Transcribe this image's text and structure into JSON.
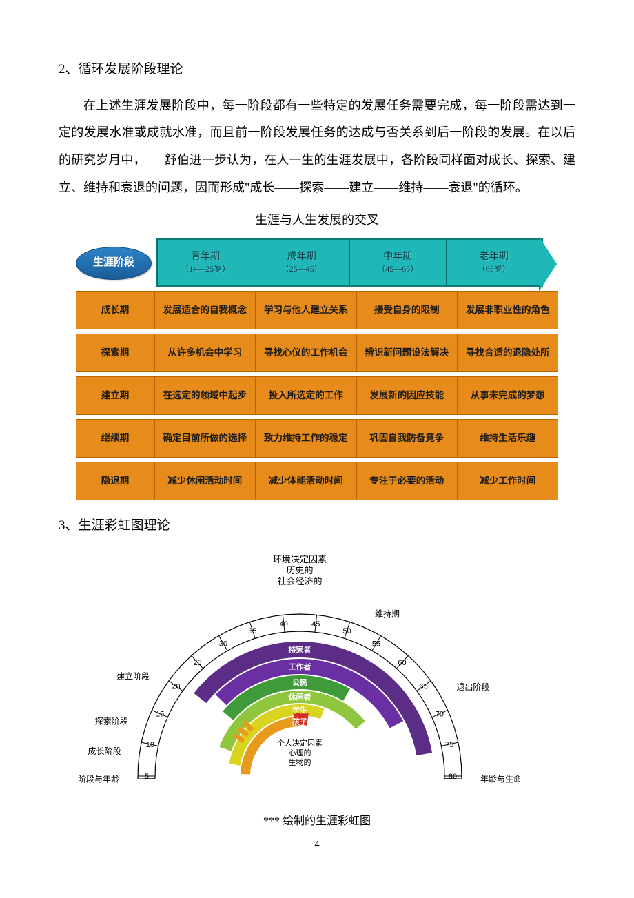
{
  "section2": {
    "heading": "2、循环发展阶段理论",
    "paragraph": "在上述生涯发展阶段中，每一阶段都有一些特定的发展任务需要完成，每一阶段需达到一定的发展水准或成就水准，而且前一阶段发展任务的达成与否关系到后一阶段的发展。在以后的研究岁月中，　　舒伯进一步认为，在人一生的生涯发展中，各阶段同样面对成长、探索、建立、维持和衰退的问题，因而形成\"成长——探索——建立——维持——衰退\"的循环。",
    "chart_title": "生涯与人生发展的交叉"
  },
  "matrix": {
    "stage_badge": "生涯阶段",
    "stage_badge_bg": "#2d84c7",
    "arrow_bg": "#20b7b7",
    "cell_bg": "#e78b1a",
    "columns": [
      {
        "label": "青年期",
        "age": "（14—25岁）"
      },
      {
        "label": "成年期",
        "age": "（25—45）"
      },
      {
        "label": "中年期",
        "age": "（45—65）"
      },
      {
        "label": "老年期",
        "age": "（65岁）"
      }
    ],
    "rows": [
      {
        "hdr": "成长期",
        "cells": [
          "发展适合的自我概念",
          "学习与他人建立关系",
          "接受自身的限制",
          "发展非职业性的角色"
        ]
      },
      {
        "hdr": "探索期",
        "cells": [
          "从许多机会中学习",
          "寻找心仪的工作机会",
          "辨识新问题设法解决",
          "寻找合适的退隐处所"
        ]
      },
      {
        "hdr": "建立期",
        "cells": [
          "在选定的领域中起步",
          "投入所选定的工作",
          "发展新的因应技能",
          "从事未完成的梦想"
        ]
      },
      {
        "hdr": "继续期",
        "cells": [
          "确定目前所做的选择",
          "致力维持工作的稳定",
          "巩固自我防备竞争",
          "维持生活乐趣"
        ]
      },
      {
        "hdr": "隐退期",
        "cells": [
          "减少休闲活动时间",
          "减少体能活动时间",
          "专注于必要的活动",
          "减少工作时间"
        ]
      }
    ]
  },
  "section3": {
    "heading": "3、生涯彩虹图理论",
    "caption": "*** 绘制的生涯彩虹图",
    "page_number": "4"
  },
  "rainbow": {
    "top_labels": [
      "环境决定因素",
      "历史的",
      "社会经济的"
    ],
    "bottom_labels": [
      "个人决定因素",
      "心理的",
      "生物的"
    ],
    "outer_ticks": [
      5,
      10,
      15,
      20,
      25,
      30,
      35,
      40,
      45,
      50,
      55,
      60,
      65,
      70,
      75,
      80
    ],
    "left_stage_labels": [
      "建立阶段",
      "探索阶段",
      "成长阶段",
      "生命阶段与年龄"
    ],
    "right_stage_labels": [
      "维持期",
      "退出阶段",
      "年龄与生命阶段"
    ],
    "role_labels": [
      "持家者",
      "工作者",
      "公民",
      "休闲者",
      "学生",
      "孩子"
    ],
    "arcs": [
      {
        "color": "#5b2d86",
        "label": "持家者",
        "r_out": 195,
        "r_in": 172,
        "a0": 142,
        "a1": 10
      },
      {
        "color": "#6a2fa3",
        "label": "工作者",
        "r_out": 170,
        "r_in": 148,
        "a0": 136,
        "a1": 28
      },
      {
        "color": "#3f9a3a",
        "label": "公民",
        "r_out": 146,
        "r_in": 126,
        "a0": 140,
        "a1": 60
      },
      {
        "color": "#8fc63d",
        "label": "休闲者",
        "r_out": 124,
        "r_in": 106,
        "a0": 160,
        "a1": 40
      },
      {
        "color": "#d9d41f",
        "label": "学生",
        "r_out": 104,
        "r_in": 88,
        "a0": 170,
        "a1": 70
      },
      {
        "color": "#e89a1c",
        "label": "孩子",
        "r_out": 86,
        "r_in": 72,
        "a0": 178,
        "a1": 90
      }
    ],
    "red_accent": {
      "color": "#d42c1e"
    }
  }
}
